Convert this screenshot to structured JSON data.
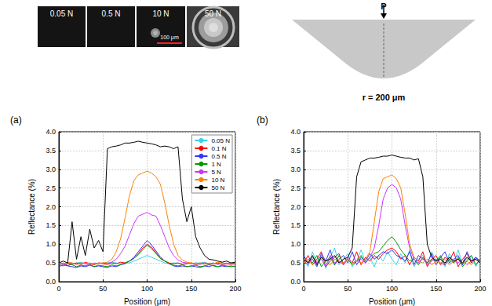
{
  "images": {
    "labels": [
      "0.05 N",
      "0.5 N",
      "10 N",
      "50 N"
    ],
    "scale_bar": "100 μm"
  },
  "indenter": {
    "load": "P",
    "radius": "r = 200 μm"
  },
  "chart_data": [
    {
      "type": "line",
      "title": "(a)",
      "x_label": "Position (μm)",
      "y_label": "Reflectance (%)",
      "xlim": [
        0,
        200
      ],
      "xticks": [
        0,
        50,
        100,
        150,
        200
      ],
      "ylim": [
        0,
        4
      ],
      "yticks": [
        {
          "value": 0,
          "label": "0.0"
        },
        {
          "value": 0.5,
          "label": "0.5"
        },
        {
          "value": 1,
          "label": "1.0"
        },
        {
          "value": 1.5,
          "label": "1.5"
        },
        {
          "value": 2,
          "label": "2.0"
        },
        {
          "value": 2.5,
          "label": "2.5"
        },
        {
          "value": 3,
          "label": "3.0"
        },
        {
          "value": 3.5,
          "label": "3.5"
        },
        {
          "value": 4,
          "label": "4.0"
        }
      ],
      "grid": true,
      "legend": "upper right",
      "x": [
        0,
        5,
        10,
        15,
        20,
        25,
        30,
        35,
        40,
        45,
        50,
        55,
        60,
        65,
        70,
        75,
        80,
        85,
        90,
        95,
        100,
        105,
        110,
        115,
        120,
        125,
        130,
        135,
        140,
        145,
        150,
        155,
        160,
        165,
        170,
        175,
        180,
        185,
        190,
        195,
        200
      ],
      "series": [
        {
          "name": "0.05 N",
          "color": "#3fd0e6",
          "values": [
            0.5,
            0.48,
            0.5,
            0.45,
            0.5,
            0.52,
            0.48,
            0.5,
            0.46,
            0.5,
            0.48,
            0.5,
            0.52,
            0.5,
            0.48,
            0.5,
            0.5,
            0.55,
            0.6,
            0.65,
            0.7,
            0.65,
            0.6,
            0.55,
            0.5,
            0.48,
            0.5,
            0.5,
            0.46,
            0.5,
            0.48,
            0.5,
            0.5,
            0.52,
            0.48,
            0.5,
            0.46,
            0.5,
            0.48,
            0.5,
            0.5
          ]
        },
        {
          "name": "0.1 N",
          "color": "#ff0000",
          "values": [
            0.45,
            0.5,
            0.42,
            0.48,
            0.5,
            0.46,
            0.52,
            0.48,
            0.45,
            0.5,
            0.48,
            0.46,
            0.5,
            0.48,
            0.52,
            0.5,
            0.55,
            0.62,
            0.75,
            0.9,
            1.0,
            0.92,
            0.78,
            0.62,
            0.55,
            0.5,
            0.48,
            0.5,
            0.46,
            0.48,
            0.5,
            0.45,
            0.48,
            0.5,
            0.46,
            0.48,
            0.5,
            0.45,
            0.48,
            0.46,
            0.48
          ]
        },
        {
          "name": "0.5 N",
          "color": "#3333ff",
          "values": [
            0.4,
            0.45,
            0.42,
            0.4,
            0.38,
            0.42,
            0.4,
            0.44,
            0.4,
            0.42,
            0.4,
            0.38,
            0.42,
            0.4,
            0.45,
            0.48,
            0.55,
            0.65,
            0.8,
            0.95,
            1.1,
            0.98,
            0.82,
            0.66,
            0.55,
            0.48,
            0.42,
            0.4,
            0.42,
            0.4,
            0.42,
            0.4,
            0.38,
            0.42,
            0.4,
            0.44,
            0.4,
            0.42,
            0.4,
            0.42,
            0.4
          ]
        },
        {
          "name": "1 N",
          "color": "#009900",
          "values": [
            0.45,
            0.42,
            0.48,
            0.45,
            0.4,
            0.44,
            0.42,
            0.46,
            0.4,
            0.44,
            0.42,
            0.4,
            0.45,
            0.42,
            0.46,
            0.5,
            0.55,
            0.62,
            0.72,
            0.85,
            0.98,
            0.88,
            0.75,
            0.62,
            0.55,
            0.48,
            0.44,
            0.42,
            0.45,
            0.4,
            0.42,
            0.44,
            0.4,
            0.42,
            0.45,
            0.42,
            0.4,
            0.44,
            0.42,
            0.4,
            0.42
          ]
        },
        {
          "name": "5 N",
          "color": "#cc33ff",
          "values": [
            0.5,
            0.45,
            0.48,
            0.5,
            0.46,
            0.5,
            0.48,
            0.45,
            0.5,
            0.48,
            0.5,
            0.48,
            0.52,
            0.6,
            0.75,
            0.95,
            1.25,
            1.55,
            1.75,
            1.8,
            1.85,
            1.78,
            1.75,
            1.5,
            1.2,
            0.9,
            0.7,
            0.58,
            0.52,
            0.5,
            0.48,
            0.5,
            0.46,
            0.5,
            0.48,
            0.5,
            0.46,
            0.48,
            0.5,
            0.48,
            0.5
          ]
        },
        {
          "name": "10 N",
          "color": "#ff8000",
          "values": [
            0.5,
            0.48,
            0.52,
            0.5,
            0.46,
            0.5,
            0.48,
            0.5,
            0.46,
            0.5,
            0.5,
            0.52,
            0.6,
            0.8,
            1.15,
            1.7,
            2.3,
            2.7,
            2.85,
            2.9,
            2.95,
            2.9,
            2.8,
            2.6,
            2.1,
            1.5,
            1.0,
            0.7,
            0.58,
            0.52,
            0.5,
            0.48,
            0.5,
            0.46,
            0.5,
            0.48,
            0.52,
            0.5,
            0.48,
            0.5,
            0.5
          ]
        },
        {
          "name": "50 N",
          "color": "#000000",
          "values": [
            0.5,
            0.55,
            0.5,
            1.6,
            0.6,
            1.2,
            0.7,
            1.4,
            0.9,
            1.1,
            0.8,
            3.55,
            3.6,
            3.62,
            3.65,
            3.7,
            3.7,
            3.72,
            3.75,
            3.72,
            3.7,
            3.68,
            3.65,
            3.6,
            3.62,
            3.6,
            3.55,
            3.6,
            2.2,
            1.6,
            2.0,
            1.2,
            0.9,
            0.7,
            0.6,
            0.58,
            0.55,
            0.52,
            0.55,
            0.5,
            0.52
          ]
        }
      ]
    },
    {
      "type": "line",
      "title": "(b)",
      "x_label": "Position (μm)",
      "y_label": "Reflectance (%)",
      "xlim": [
        0,
        200
      ],
      "xticks": [
        0,
        50,
        100,
        150,
        200
      ],
      "ylim": [
        0,
        4
      ],
      "yticks": [
        {
          "value": 0,
          "label": "0.0"
        },
        {
          "value": 0.5,
          "label": "0.5"
        },
        {
          "value": 1,
          "label": "1.0"
        },
        {
          "value": 1.5,
          "label": "1.5"
        },
        {
          "value": 2,
          "label": "2.0"
        },
        {
          "value": 2.5,
          "label": "2.5"
        },
        {
          "value": 3,
          "label": "3.0"
        },
        {
          "value": 3.5,
          "label": "3.5"
        },
        {
          "value": 4,
          "label": "4.0"
        }
      ],
      "grid": true,
      "x": [
        0,
        5,
        10,
        15,
        20,
        25,
        30,
        35,
        40,
        45,
        50,
        55,
        60,
        65,
        70,
        75,
        80,
        85,
        90,
        95,
        100,
        105,
        110,
        115,
        120,
        125,
        130,
        135,
        140,
        145,
        150,
        155,
        160,
        165,
        170,
        175,
        180,
        185,
        190,
        195,
        200
      ],
      "series": [
        {
          "color": "#3fd0e6",
          "values": [
            0.6,
            0.4,
            0.8,
            0.5,
            0.7,
            0.35,
            0.65,
            0.9,
            0.45,
            0.6,
            0.75,
            0.4,
            0.55,
            0.85,
            0.5,
            0.65,
            0.4,
            0.7,
            0.55,
            0.8,
            0.6,
            0.45,
            0.75,
            0.5,
            0.85,
            0.4,
            0.6,
            0.7,
            0.45,
            0.8,
            0.55,
            0.65,
            0.4,
            0.75,
            0.5,
            0.85,
            0.45,
            0.6,
            0.7,
            0.4,
            0.65
          ]
        },
        {
          "color": "#ff0000",
          "values": [
            0.5,
            0.7,
            0.45,
            0.6,
            0.8,
            0.4,
            0.55,
            0.65,
            0.75,
            0.45,
            0.6,
            0.5,
            0.8,
            0.45,
            0.65,
            0.55,
            0.7,
            0.6,
            0.75,
            0.85,
            0.9,
            0.8,
            0.6,
            0.7,
            0.45,
            0.65,
            0.55,
            0.8,
            0.4,
            0.6,
            0.7,
            0.45,
            0.65,
            0.55,
            0.8,
            0.4,
            0.6,
            0.75,
            0.5,
            0.65,
            0.55
          ]
        },
        {
          "color": "#3333ff",
          "values": [
            0.7,
            0.5,
            0.6,
            0.4,
            0.75,
            0.55,
            0.85,
            0.45,
            0.6,
            0.7,
            0.5,
            0.8,
            0.45,
            0.65,
            0.55,
            0.75,
            0.6,
            0.7,
            0.8,
            0.75,
            0.85,
            0.7,
            0.65,
            0.55,
            0.8,
            0.45,
            0.7,
            0.6,
            0.5,
            0.75,
            0.45,
            0.65,
            0.8,
            0.5,
            0.6,
            0.7,
            0.45,
            0.8,
            0.55,
            0.65,
            0.5
          ]
        },
        {
          "color": "#009900",
          "values": [
            0.45,
            0.6,
            0.5,
            0.7,
            0.4,
            0.55,
            0.65,
            0.45,
            0.7,
            0.5,
            0.6,
            0.45,
            0.55,
            0.7,
            0.5,
            0.65,
            0.75,
            0.8,
            0.95,
            1.1,
            1.2,
            1.05,
            0.85,
            0.7,
            0.55,
            0.6,
            0.45,
            0.65,
            0.5,
            0.6,
            0.55,
            0.7,
            0.45,
            0.6,
            0.5,
            0.65,
            0.4,
            0.55,
            0.7,
            0.45,
            0.6
          ]
        },
        {
          "color": "#cc33ff",
          "values": [
            0.55,
            0.45,
            0.65,
            0.5,
            0.6,
            0.4,
            0.7,
            0.5,
            0.55,
            0.45,
            0.65,
            0.5,
            0.55,
            0.6,
            0.5,
            0.65,
            0.9,
            1.5,
            2.2,
            2.5,
            2.6,
            2.5,
            2.2,
            1.5,
            0.9,
            0.6,
            0.5,
            0.65,
            0.45,
            0.55,
            0.6,
            0.5,
            0.45,
            0.65,
            0.55,
            0.5,
            0.6,
            0.45,
            0.55,
            0.6,
            0.5
          ]
        },
        {
          "color": "#ff8000",
          "values": [
            0.5,
            0.6,
            0.45,
            0.55,
            0.65,
            0.5,
            0.45,
            0.6,
            0.55,
            0.5,
            0.6,
            0.5,
            0.55,
            0.5,
            0.6,
            0.8,
            1.6,
            2.4,
            2.75,
            2.8,
            2.85,
            2.75,
            2.5,
            1.8,
            1.0,
            0.65,
            0.55,
            0.5,
            0.6,
            0.45,
            0.55,
            0.5,
            0.6,
            0.45,
            0.55,
            0.6,
            0.5,
            0.55,
            0.45,
            0.6,
            0.5
          ]
        },
        {
          "color": "#000000",
          "values": [
            0.6,
            0.5,
            0.7,
            0.45,
            0.65,
            0.55,
            0.6,
            0.7,
            0.5,
            0.6,
            0.65,
            0.9,
            2.8,
            3.2,
            3.25,
            3.3,
            3.3,
            3.32,
            3.35,
            3.35,
            3.38,
            3.35,
            3.32,
            3.3,
            3.3,
            3.25,
            3.28,
            2.8,
            1.0,
            0.65,
            0.55,
            0.6,
            0.5,
            0.65,
            0.55,
            0.6,
            0.5,
            0.65,
            0.55,
            0.6,
            0.5
          ]
        }
      ]
    }
  ]
}
